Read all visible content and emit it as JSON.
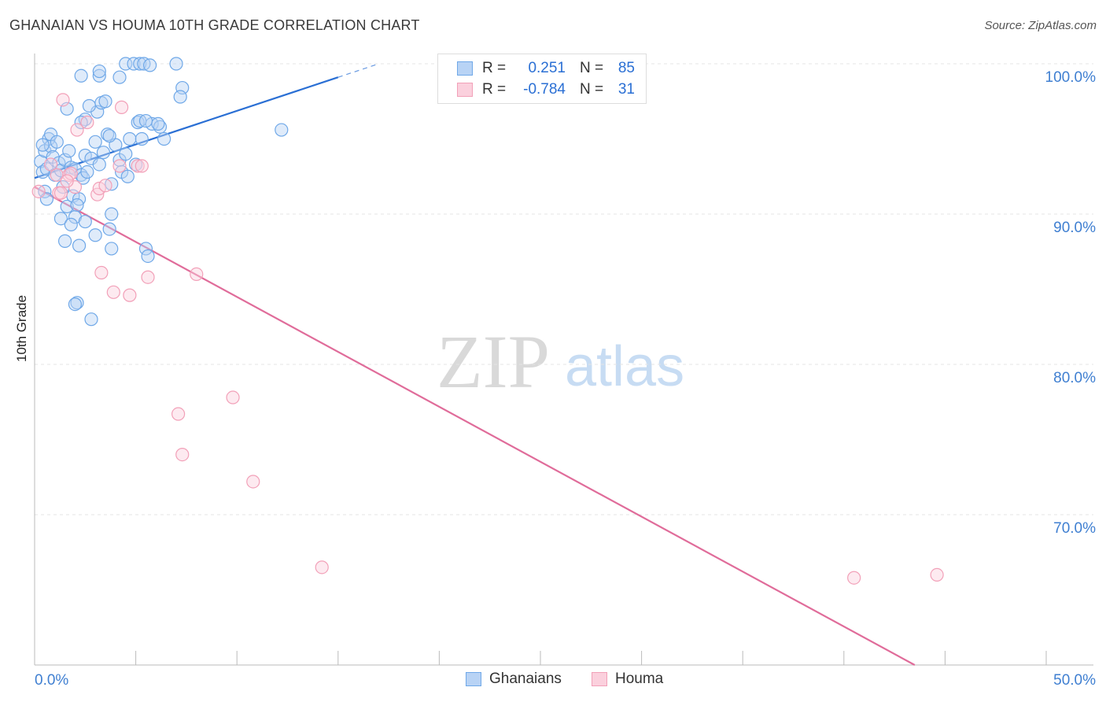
{
  "header": {
    "title": "GHANAIAN VS HOUMA 10TH GRADE CORRELATION CHART",
    "source": "Source: ZipAtlas.com"
  },
  "watermark": {
    "zip": "ZIP",
    "atlas": "atlas"
  },
  "legend": {
    "rows": [
      {
        "r_label": "R =",
        "r_value": "0.251",
        "n_label": "N =",
        "n_value": "85",
        "color": "#6fa8e8",
        "fill": "#b8d3f5"
      },
      {
        "r_label": "R =",
        "r_value": "-0.784",
        "n_label": "N =",
        "n_value": "31",
        "color": "#f2a0b8",
        "fill": "#fbd0dd"
      }
    ]
  },
  "chart_data": {
    "type": "scatter",
    "title": "GHANAIAN VS HOUMA 10TH GRADE CORRELATION CHART",
    "xlabel": "",
    "ylabel": "10th Grade",
    "xlim": [
      0,
      50
    ],
    "ylim": [
      60,
      100
    ],
    "x_tick_labels": [
      "0.0%",
      "50.0%"
    ],
    "y_ticks": [
      70,
      80,
      90,
      100
    ],
    "y_tick_labels": [
      "70.0%",
      "80.0%",
      "90.0%",
      "100.0%"
    ],
    "grid": true,
    "series": [
      {
        "name": "Ghanaians",
        "color": "#6fa8e8",
        "fill": "#b8d3f5",
        "trend": {
          "x": [
            0,
            15
          ],
          "y": [
            92.4,
            99.1
          ],
          "dashed_to_x": 17,
          "color": "#2a6fd4"
        },
        "points": [
          [
            0.3,
            93.5
          ],
          [
            0.4,
            92.8
          ],
          [
            0.5,
            94.2
          ],
          [
            0.6,
            93.0
          ],
          [
            0.7,
            95.0
          ],
          [
            0.8,
            94.5
          ],
          [
            0.9,
            93.8
          ],
          [
            1.0,
            92.6
          ],
          [
            0.5,
            91.5
          ],
          [
            0.6,
            91.0
          ],
          [
            0.4,
            94.6
          ],
          [
            0.8,
            95.3
          ],
          [
            1.2,
            93.4
          ],
          [
            1.1,
            94.8
          ],
          [
            1.3,
            92.9
          ],
          [
            1.5,
            93.6
          ],
          [
            1.7,
            94.2
          ],
          [
            1.8,
            93.1
          ],
          [
            1.4,
            91.8
          ],
          [
            1.6,
            90.5
          ],
          [
            1.9,
            91.2
          ],
          [
            2.0,
            93.0
          ],
          [
            2.2,
            91.0
          ],
          [
            2.3,
            92.6
          ],
          [
            2.1,
            90.6
          ],
          [
            2.4,
            92.4
          ],
          [
            2.5,
            93.9
          ],
          [
            2.6,
            92.8
          ],
          [
            2.8,
            93.7
          ],
          [
            3.0,
            94.8
          ],
          [
            3.2,
            93.3
          ],
          [
            3.4,
            94.1
          ],
          [
            3.6,
            95.3
          ],
          [
            2.0,
            89.8
          ],
          [
            2.5,
            89.5
          ],
          [
            3.0,
            88.6
          ],
          [
            1.3,
            89.7
          ],
          [
            1.5,
            88.2
          ],
          [
            1.8,
            89.3
          ],
          [
            2.2,
            87.9
          ],
          [
            4.0,
            94.6
          ],
          [
            4.2,
            93.6
          ],
          [
            4.5,
            94.0
          ],
          [
            4.7,
            95.0
          ],
          [
            4.3,
            92.8
          ],
          [
            3.8,
            92.0
          ],
          [
            4.6,
            92.5
          ],
          [
            5.0,
            93.3
          ],
          [
            5.3,
            95.0
          ],
          [
            5.8,
            96.0
          ],
          [
            6.2,
            95.8
          ],
          [
            6.4,
            95.0
          ],
          [
            5.1,
            96.1
          ],
          [
            5.2,
            96.2
          ],
          [
            5.5,
            96.2
          ],
          [
            6.1,
            96.0
          ],
          [
            3.1,
            96.8
          ],
          [
            2.7,
            97.2
          ],
          [
            2.5,
            96.3
          ],
          [
            3.3,
            97.4
          ],
          [
            3.5,
            97.5
          ],
          [
            1.6,
            97.0
          ],
          [
            2.3,
            96.1
          ],
          [
            3.7,
            95.2
          ],
          [
            2.3,
            99.2
          ],
          [
            3.2,
            99.2
          ],
          [
            3.2,
            99.5
          ],
          [
            4.2,
            99.1
          ],
          [
            4.5,
            100.0
          ],
          [
            4.9,
            100.0
          ],
          [
            5.2,
            100.0
          ],
          [
            5.4,
            100.0
          ],
          [
            5.7,
            99.9
          ],
          [
            7.0,
            100.0
          ],
          [
            7.3,
            98.4
          ],
          [
            7.2,
            97.8
          ],
          [
            12.2,
            95.6
          ],
          [
            3.8,
            90.0
          ],
          [
            3.7,
            89.0
          ],
          [
            3.8,
            87.7
          ],
          [
            5.5,
            87.7
          ],
          [
            5.6,
            87.2
          ],
          [
            2.1,
            84.1
          ],
          [
            2.0,
            84.0
          ],
          [
            2.8,
            83.0
          ]
        ]
      },
      {
        "name": "Houma",
        "color": "#f2a0b8",
        "fill": "#fbd0dd",
        "trend": {
          "x": [
            0,
            43.5
          ],
          "y": [
            91.8,
            60.0
          ],
          "color": "#e06c9a"
        },
        "points": [
          [
            0.2,
            91.5
          ],
          [
            0.8,
            93.3
          ],
          [
            1.1,
            92.6
          ],
          [
            1.2,
            91.4
          ],
          [
            1.7,
            92.6
          ],
          [
            1.8,
            92.7
          ],
          [
            2.0,
            91.8
          ],
          [
            2.1,
            95.6
          ],
          [
            2.6,
            96.1
          ],
          [
            1.4,
            97.6
          ],
          [
            4.3,
            97.1
          ],
          [
            3.1,
            91.3
          ],
          [
            3.2,
            91.7
          ],
          [
            3.5,
            91.9
          ],
          [
            4.2,
            93.2
          ],
          [
            5.1,
            93.2
          ],
          [
            5.3,
            93.2
          ],
          [
            3.3,
            86.1
          ],
          [
            3.9,
            84.8
          ],
          [
            4.7,
            84.6
          ],
          [
            5.6,
            85.8
          ],
          [
            8.0,
            86.0
          ],
          [
            7.1,
            76.7
          ],
          [
            7.3,
            74.0
          ],
          [
            9.8,
            77.8
          ],
          [
            10.8,
            72.2
          ],
          [
            14.2,
            66.5
          ],
          [
            40.5,
            65.8
          ],
          [
            44.6,
            66.0
          ],
          [
            1.3,
            91.4
          ],
          [
            1.6,
            92.2
          ]
        ]
      }
    ]
  },
  "bottom_legend": {
    "items": [
      "Ghanaians",
      "Houma"
    ]
  }
}
